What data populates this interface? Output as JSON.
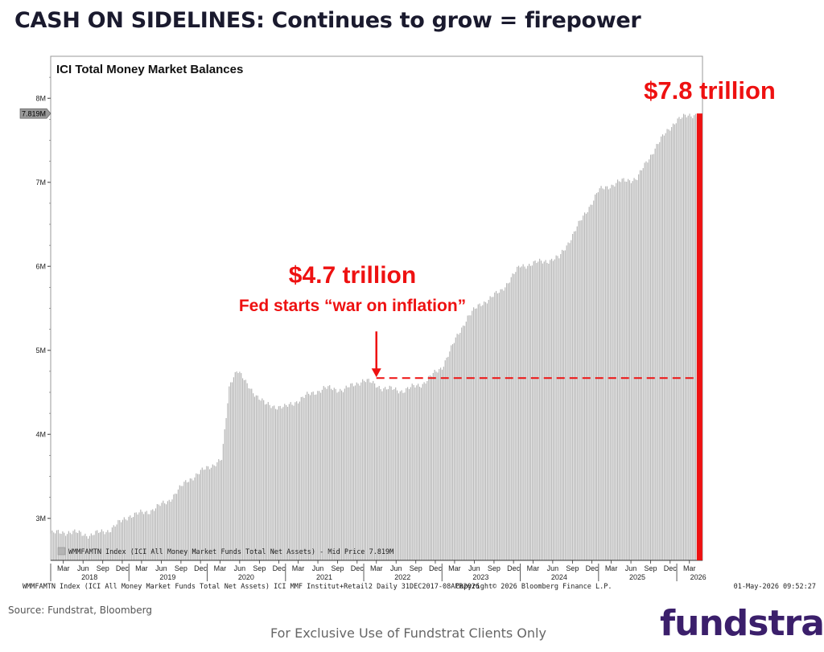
{
  "slide": {
    "title": "CASH ON SIDELINES: Continues to grow = firepower",
    "source": "Source: Fundstrat, Bloomberg",
    "footer": "For Exclusive Use of Fundstrat Clients Only",
    "logo_text": "fundstrat"
  },
  "colors": {
    "bar": "#b4b4b4",
    "accent_red": "#ee1111",
    "axis": "#333333",
    "logo": "#3b1f6b"
  },
  "chart_data": {
    "type": "bar",
    "title": "ICI Total Money Market Balances",
    "xlabel": "",
    "ylabel": "",
    "ylim": [
      2.5,
      8.5
    ],
    "x_range": [
      "2018-01-01",
      "2026-05-01"
    ],
    "y_ticks": [
      "3M",
      "4M",
      "5M",
      "6M",
      "7M",
      "8M"
    ],
    "y_tick_values": [
      3,
      4,
      5,
      6,
      7,
      8
    ],
    "last_value_tag": "7.819M",
    "x_month_ticks": [
      "Mar",
      "Jun",
      "Sep",
      "Dec",
      "Mar",
      "Jun",
      "Sep",
      "Dec",
      "Mar",
      "Jun",
      "Sep",
      "Dec",
      "Mar",
      "Jun",
      "Sep",
      "Dec",
      "Mar",
      "Jun",
      "Sep",
      "Dec",
      "Mar",
      "Jun",
      "Sep",
      "Dec",
      "Mar",
      "Jun",
      "Sep",
      "Dec",
      "Mar",
      "Jun",
      "Sep",
      "Dec",
      "Mar"
    ],
    "x_year_labels": [
      "2018",
      "2019",
      "2020",
      "2021",
      "2022",
      "2023",
      "2024",
      "2025",
      "2026"
    ],
    "legend": "WMMFAMTN Index (ICI All Money Market Funds Total Net Assets) - Mid Price 7.819M",
    "legend_position": "bottom-left",
    "grid": false,
    "bottom_info_left": "WMMFAMTN Index (ICI All Money Market Funds Total Net Assets) ICI MMF Institut+Retail2 Daily 31DEC2017-08APR2026",
    "bottom_info_mid": "Copyright© 2026 Bloomberg Finance L.P.",
    "bottom_info_right": "01-May-2026 09:52:27",
    "series": [
      {
        "values": [
          {
            "x": "2018-01-01",
            "y": 2.82
          },
          {
            "x": "2018-04-01",
            "y": 2.84
          },
          {
            "x": "2018-07-01",
            "y": 2.8
          },
          {
            "x": "2018-10-01",
            "y": 2.86
          },
          {
            "x": "2019-01-01",
            "y": 3.03
          },
          {
            "x": "2019-04-01",
            "y": 3.08
          },
          {
            "x": "2019-07-01",
            "y": 3.2
          },
          {
            "x": "2019-10-01",
            "y": 3.45
          },
          {
            "x": "2020-01-01",
            "y": 3.6
          },
          {
            "x": "2020-03-10",
            "y": 3.7
          },
          {
            "x": "2020-04-15",
            "y": 4.6
          },
          {
            "x": "2020-05-20",
            "y": 4.78
          },
          {
            "x": "2020-07-01",
            "y": 4.6
          },
          {
            "x": "2020-10-01",
            "y": 4.35
          },
          {
            "x": "2021-01-01",
            "y": 4.32
          },
          {
            "x": "2021-04-01",
            "y": 4.45
          },
          {
            "x": "2021-07-01",
            "y": 4.55
          },
          {
            "x": "2021-10-01",
            "y": 4.53
          },
          {
            "x": "2022-01-01",
            "y": 4.65
          },
          {
            "x": "2022-04-01",
            "y": 4.55
          },
          {
            "x": "2022-07-01",
            "y": 4.52
          },
          {
            "x": "2022-10-01",
            "y": 4.6
          },
          {
            "x": "2023-01-01",
            "y": 4.8
          },
          {
            "x": "2023-03-20",
            "y": 5.2
          },
          {
            "x": "2023-05-01",
            "y": 5.4
          },
          {
            "x": "2023-07-01",
            "y": 5.55
          },
          {
            "x": "2023-10-01",
            "y": 5.7
          },
          {
            "x": "2024-01-01",
            "y": 6.0
          },
          {
            "x": "2024-04-01",
            "y": 6.05
          },
          {
            "x": "2024-07-01",
            "y": 6.1
          },
          {
            "x": "2024-10-01",
            "y": 6.5
          },
          {
            "x": "2025-01-01",
            "y": 6.9
          },
          {
            "x": "2025-04-01",
            "y": 7.0
          },
          {
            "x": "2025-07-01",
            "y": 7.05
          },
          {
            "x": "2025-10-01",
            "y": 7.45
          },
          {
            "x": "2026-01-01",
            "y": 7.75
          },
          {
            "x": "2026-04-08",
            "y": 7.819
          }
        ]
      }
    ],
    "annotations": {
      "peak_label": "$7.8 trillion",
      "ref_label": "$4.7 trillion",
      "ref_sublabel": "Fed starts “war on inflation”",
      "ref_date": "2022-03-01",
      "ref_value": 4.67,
      "end_value": 7.819
    }
  }
}
